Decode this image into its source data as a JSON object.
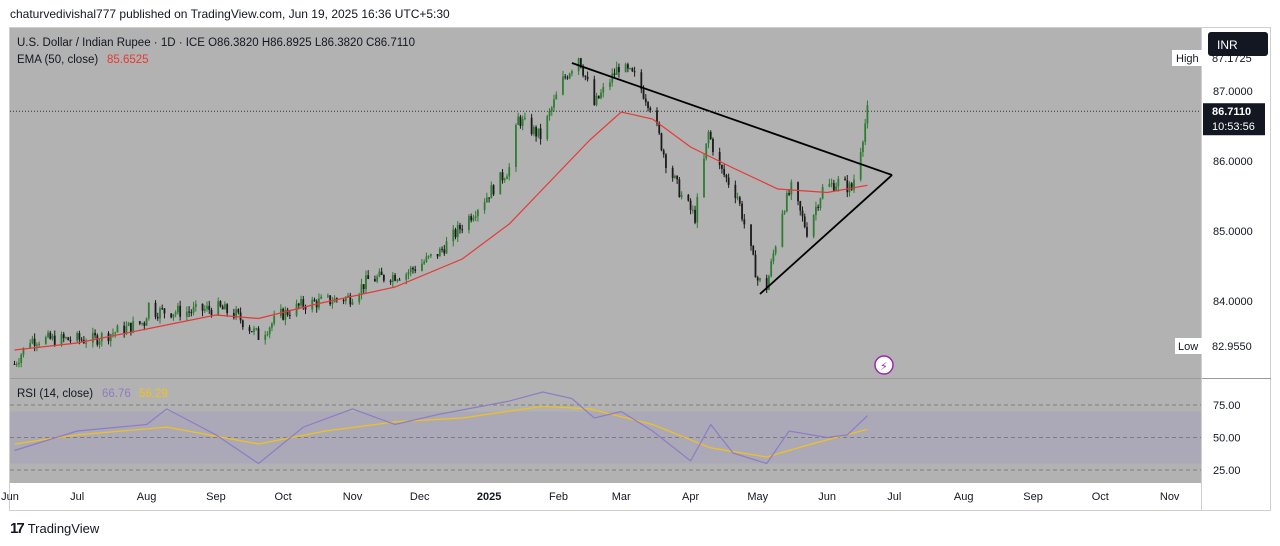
{
  "header": {
    "publish_text": "chaturvedivishal777 published on TradingView.com, Jun 19, 2025 16:36 UTC+5:30"
  },
  "footer": {
    "brand": "TradingView"
  },
  "colors": {
    "up": "#2e7d32",
    "down": "#1a1a1a",
    "ema": "#e53935",
    "rsi": "#8e7cc3",
    "rsi_ma": "#f0c21c",
    "trend": "#000000",
    "pane_bg": "#b2b2b2"
  },
  "chart_data": {
    "type": "candlestick",
    "symbol_line": "U.S. Dollar / Indian Rupee · 1D · ICE",
    "ohlc": {
      "o_label": "O",
      "o": "86.3820",
      "h_label": "H",
      "h": "86.8925",
      "l_label": "L",
      "l": "86.3820",
      "c_label": "C",
      "c": "86.7110"
    },
    "ema_label": "EMA (50, close)",
    "ema_value": "85.6525",
    "currency": "INR",
    "high_label": "High",
    "high_value": "87.1725",
    "low_label": "Low",
    "low_value": "82.9550",
    "last_price": "86.7110",
    "countdown": "10:53:56",
    "y_ticks": [
      "87.0000",
      "86.0000",
      "85.0000",
      "84.0000"
    ],
    "y_tick_values": [
      87,
      86,
      85,
      84
    ],
    "ylim": [
      82.9,
      87.9
    ],
    "x_ticks": [
      "Jun",
      "Jul",
      "Aug",
      "Sep",
      "Oct",
      "Nov",
      "Dec",
      "2025",
      "Feb",
      "Mar",
      "Apr",
      "May",
      "Jun",
      "Jul",
      "Aug",
      "Sep",
      "Oct",
      "Nov"
    ],
    "price_path": [
      [
        "2024-06-03",
        83.1
      ],
      [
        "2024-06-10",
        83.45
      ],
      [
        "2024-06-24",
        83.45
      ],
      [
        "2024-07-08",
        83.45
      ],
      [
        "2024-07-22",
        83.6
      ],
      [
        "2024-07-31",
        83.7
      ],
      [
        "2024-08-02",
        83.95
      ],
      [
        "2024-08-05",
        83.85
      ],
      [
        "2024-08-20",
        83.85
      ],
      [
        "2024-09-02",
        83.9
      ],
      [
        "2024-09-10",
        83.8
      ],
      [
        "2024-09-20",
        83.5
      ],
      [
        "2024-09-30",
        83.8
      ],
      [
        "2024-10-10",
        83.95
      ],
      [
        "2024-10-31",
        84.05
      ],
      [
        "2024-11-08",
        84.3
      ],
      [
        "2024-11-25",
        84.4
      ],
      [
        "2024-12-10",
        84.7
      ],
      [
        "2024-12-31",
        85.5
      ],
      [
        "2025-01-10",
        85.9
      ],
      [
        "2025-01-14",
        86.6
      ],
      [
        "2025-01-24",
        86.35
      ],
      [
        "2025-02-03",
        87.15
      ],
      [
        "2025-02-10",
        87.5
      ],
      [
        "2025-02-17",
        86.8
      ],
      [
        "2025-02-28",
        87.35
      ],
      [
        "2025-03-07",
        87.2
      ],
      [
        "2025-03-14",
        86.8
      ],
      [
        "2025-03-21",
        86.0
      ],
      [
        "2025-03-28",
        85.5
      ],
      [
        "2025-04-03",
        85.2
      ],
      [
        "2025-04-09",
        86.4
      ],
      [
        "2025-04-14",
        85.9
      ],
      [
        "2025-04-22",
        85.5
      ],
      [
        "2025-05-01",
        84.3
      ],
      [
        "2025-05-05",
        84.2
      ],
      [
        "2025-05-12",
        85.3
      ],
      [
        "2025-05-16",
        85.6
      ],
      [
        "2025-05-23",
        85.0
      ],
      [
        "2025-05-30",
        85.6
      ],
      [
        "2025-06-06",
        85.7
      ],
      [
        "2025-06-12",
        85.6
      ],
      [
        "2025-06-16",
        86.2
      ],
      [
        "2025-06-19",
        86.71
      ]
    ],
    "ema_path": [
      [
        "2024-06-03",
        83.3
      ],
      [
        "2024-07-01",
        83.4
      ],
      [
        "2024-08-01",
        83.6
      ],
      [
        "2024-09-01",
        83.8
      ],
      [
        "2024-09-20",
        83.75
      ],
      [
        "2024-10-15",
        83.95
      ],
      [
        "2024-11-20",
        84.2
      ],
      [
        "2024-12-20",
        84.6
      ],
      [
        "2025-01-10",
        85.1
      ],
      [
        "2025-01-31",
        85.8
      ],
      [
        "2025-02-15",
        86.3
      ],
      [
        "2025-03-01",
        86.7
      ],
      [
        "2025-03-15",
        86.6
      ],
      [
        "2025-04-01",
        86.2
      ],
      [
        "2025-04-20",
        85.9
      ],
      [
        "2025-05-10",
        85.6
      ],
      [
        "2025-06-01",
        85.55
      ],
      [
        "2025-06-19",
        85.6525
      ]
    ],
    "trendlines": [
      [
        [
          "2025-02-07",
          87.4
        ],
        [
          "2025-06-30",
          85.8
        ]
      ],
      [
        [
          "2025-05-02",
          84.1
        ],
        [
          "2025-06-30",
          85.8
        ]
      ]
    ],
    "rsi": {
      "label": "RSI (14, close)",
      "value": "66.76",
      "ma_value": "56.29",
      "y_ticks": [
        "75.00",
        "50.00",
        "25.00"
      ],
      "y_tick_values": [
        75,
        50,
        25
      ],
      "band": [
        30,
        70
      ],
      "ylim": [
        15,
        95
      ],
      "rsi_path": [
        [
          "2024-06-03",
          40
        ],
        [
          "2024-07-01",
          55
        ],
        [
          "2024-08-01",
          60
        ],
        [
          "2024-08-10",
          72
        ],
        [
          "2024-09-01",
          52
        ],
        [
          "2024-09-20",
          30
        ],
        [
          "2024-10-10",
          58
        ],
        [
          "2024-11-01",
          72
        ],
        [
          "2024-11-20",
          60
        ],
        [
          "2024-12-10",
          68
        ],
        [
          "2025-01-10",
          78
        ],
        [
          "2025-01-25",
          85
        ],
        [
          "2025-02-07",
          80
        ],
        [
          "2025-02-17",
          65
        ],
        [
          "2025-03-01",
          70
        ],
        [
          "2025-03-15",
          55
        ],
        [
          "2025-04-01",
          32
        ],
        [
          "2025-04-10",
          60
        ],
        [
          "2025-04-20",
          38
        ],
        [
          "2025-05-05",
          30
        ],
        [
          "2025-05-15",
          55
        ],
        [
          "2025-06-01",
          50
        ],
        [
          "2025-06-10",
          52
        ],
        [
          "2025-06-19",
          66.76
        ]
      ],
      "ma_path": [
        [
          "2024-06-03",
          45
        ],
        [
          "2024-07-01",
          52
        ],
        [
          "2024-08-10",
          58
        ],
        [
          "2024-09-20",
          45
        ],
        [
          "2024-10-20",
          55
        ],
        [
          "2024-11-20",
          62
        ],
        [
          "2024-12-20",
          65
        ],
        [
          "2025-01-25",
          74
        ],
        [
          "2025-02-15",
          72
        ],
        [
          "2025-03-15",
          60
        ],
        [
          "2025-04-10",
          42
        ],
        [
          "2025-05-05",
          35
        ],
        [
          "2025-05-25",
          45
        ],
        [
          "2025-06-19",
          56.29
        ]
      ]
    }
  }
}
